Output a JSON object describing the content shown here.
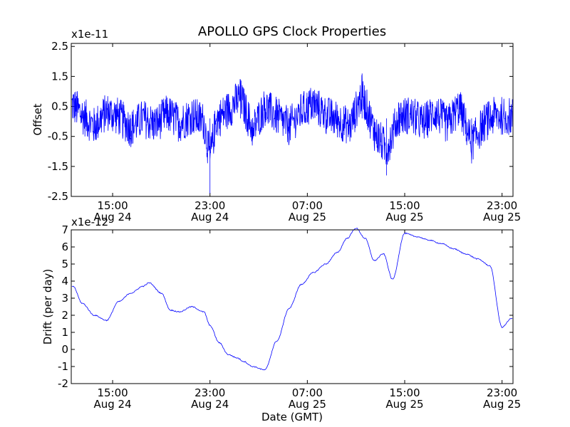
{
  "chart_data": {
    "type": "line",
    "title": "APOLLO GPS Clock Properties",
    "xlabel": "Date (GMT)",
    "x_ticks": [
      {
        "time": "15:00",
        "date": "Aug 24"
      },
      {
        "time": "23:00",
        "date": "Aug 24"
      },
      {
        "time": "07:00",
        "date": "Aug 25"
      },
      {
        "time": "15:00",
        "date": "Aug 25"
      },
      {
        "time": "23:00",
        "date": "Aug 25"
      }
    ],
    "panels": [
      {
        "ylabel": "Offset",
        "multiplier": "x1e-11",
        "ylim": [
          -2.5,
          2.6
        ],
        "yticks": [
          "2.5",
          "1.5",
          "0.5",
          "-0.5",
          "-1.5",
          "-2.5"
        ],
        "line_color": "#0000ff",
        "series": [
          {
            "x": [
              "Aug 24 11:45",
              "Aug 24 12:30",
              "Aug 24 13:30",
              "Aug 24 14:30",
              "Aug 24 15:30",
              "Aug 24 16:30",
              "Aug 24 17:30",
              "Aug 24 18:30",
              "Aug 24 19:30",
              "Aug 24 20:30",
              "Aug 24 21:30",
              "Aug 24 22:30",
              "Aug 24 23:00",
              "Aug 24 23:30",
              "Aug 25 00:30",
              "Aug 25 01:30",
              "Aug 25 02:30",
              "Aug 25 03:30",
              "Aug 25 04:30",
              "Aug 25 05:30",
              "Aug 25 06:30",
              "Aug 25 07:30",
              "Aug 25 08:30",
              "Aug 25 09:30",
              "Aug 25 10:30",
              "Aug 25 11:30",
              "Aug 25 12:30",
              "Aug 25 13:30",
              "Aug 25 14:30",
              "Aug 25 15:30",
              "Aug 25 16:30",
              "Aug 25 17:30",
              "Aug 25 18:30",
              "Aug 25 19:30",
              "Aug 25 20:30",
              "Aug 25 21:30",
              "Aug 25 22:30",
              "Aug 25 23:30"
            ],
            "values": [
              0.9,
              0.3,
              -0.4,
              0.5,
              0.2,
              -0.5,
              0.1,
              -0.3,
              0.4,
              -0.2,
              0.3,
              -0.1,
              -2.4,
              0.0,
              0.6,
              1.4,
              -0.6,
              0.8,
              0.2,
              -0.4,
              0.5,
              1.0,
              0.3,
              0.0,
              -0.4,
              1.6,
              -0.7,
              -1.8,
              0.2,
              0.3,
              -0.2,
              0.5,
              -0.3,
              0.8,
              -1.4,
              -0.2,
              0.3,
              0.2
            ]
          }
        ]
      },
      {
        "ylabel": "Drift (per day)",
        "multiplier": "x1e-12",
        "ylim": [
          -2,
          7
        ],
        "yticks": [
          "7",
          "6",
          "5",
          "4",
          "3",
          "2",
          "1",
          "0",
          "-1",
          "-2"
        ],
        "line_color": "#0000ff",
        "series": [
          {
            "x": [
              "Aug 24 11:45",
              "Aug 24 12:30",
              "Aug 24 13:30",
              "Aug 24 14:30",
              "Aug 24 15:30",
              "Aug 24 16:30",
              "Aug 24 17:30",
              "Aug 24 18:00",
              "Aug 24 19:00",
              "Aug 24 19:45",
              "Aug 24 20:30",
              "Aug 24 21:30",
              "Aug 24 22:30",
              "Aug 24 23:00",
              "Aug 24 23:45",
              "Aug 25 00:30",
              "Aug 25 01:15",
              "Aug 25 01:45",
              "Aug 25 02:30",
              "Aug 25 03:30",
              "Aug 25 04:30",
              "Aug 25 05:30",
              "Aug 25 06:30",
              "Aug 25 07:30",
              "Aug 25 08:30",
              "Aug 25 09:30",
              "Aug 25 10:15",
              "Aug 25 11:00",
              "Aug 25 11:45",
              "Aug 25 12:30",
              "Aug 25 13:15",
              "Aug 25 14:00",
              "Aug 25 15:00",
              "Aug 25 16:00",
              "Aug 25 17:00",
              "Aug 25 18:00",
              "Aug 25 19:00",
              "Aug 25 20:00",
              "Aug 25 21:00",
              "Aug 25 22:00",
              "Aug 25 23:00",
              "Aug 25 23:45"
            ],
            "values": [
              3.7,
              2.7,
              2.0,
              1.7,
              2.8,
              3.3,
              3.7,
              3.9,
              3.3,
              2.3,
              2.2,
              2.5,
              2.2,
              1.4,
              0.4,
              -0.3,
              -0.5,
              -0.7,
              -1.0,
              -1.2,
              0.5,
              2.4,
              3.8,
              4.5,
              5.0,
              5.7,
              6.5,
              7.1,
              6.5,
              5.2,
              5.6,
              4.1,
              6.8,
              6.6,
              6.4,
              6.2,
              5.9,
              5.6,
              5.3,
              4.9,
              1.3,
              1.8
            ]
          }
        ]
      }
    ]
  }
}
